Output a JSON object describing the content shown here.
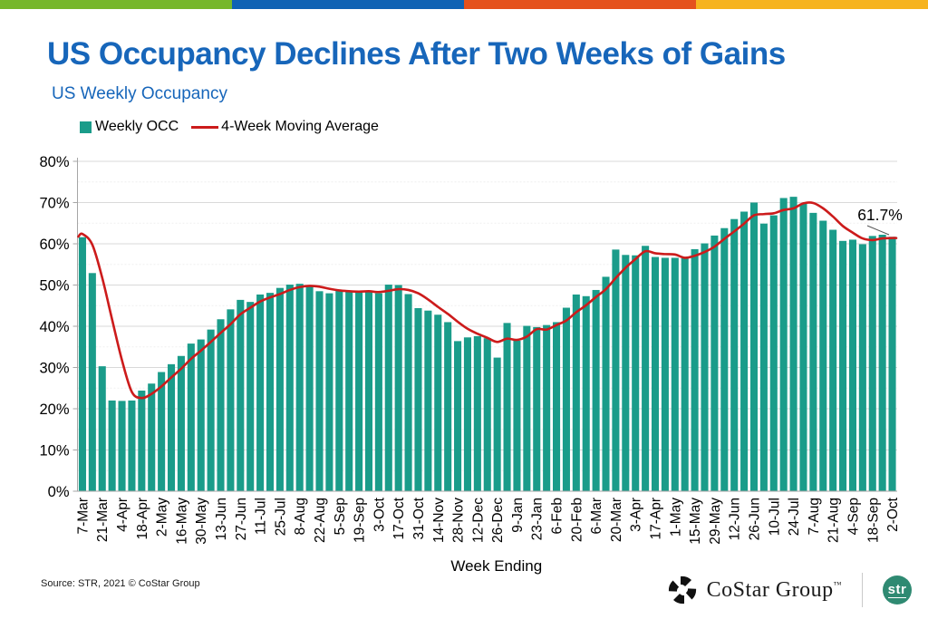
{
  "top_bar": {
    "colors": [
      "#76b72a",
      "#0f62b4",
      "#e5511d",
      "#f6b31e"
    ]
  },
  "header": {
    "title": "US Occupancy Declines After Two Weeks of Gains",
    "subtitle": "US Weekly Occupancy",
    "title_color": "#1766ba"
  },
  "footer": {
    "source": "Source: STR, 2021 © CoStar Group",
    "costar_logo_text": "CoStar Group",
    "costar_tm": "™",
    "str_badge_label": "str",
    "str_badge_color": "#2f8a72"
  },
  "chart_data": {
    "type": "bar",
    "x_axis_label": "Week Ending",
    "ylim": [
      0,
      80
    ],
    "y_ticks": [
      "0%",
      "10%",
      "20%",
      "30%",
      "40%",
      "50%",
      "60%",
      "70%",
      "80%"
    ],
    "grid": "horizontal, major solid every 10%, faint minor every 5%",
    "legend_position": "top-left",
    "annotation": {
      "text": "61.7%",
      "applies_to": "2-Oct"
    },
    "x_tick_every": 2,
    "x_tick_labels": [
      "7-Mar",
      "21-Mar",
      "4-Apr",
      "18-Apr",
      "2-May",
      "16-May",
      "30-May",
      "13-Jun",
      "27-Jun",
      "11-Jul",
      "25-Jul",
      "8-Aug",
      "22-Aug",
      "5-Sep",
      "19-Sep",
      "3-Oct",
      "17-Oct",
      "31-Oct",
      "14-Nov",
      "28-Nov",
      "12-Dec",
      "26-Dec",
      "9-Jan",
      "23-Jan",
      "6-Feb",
      "20-Feb",
      "6-Mar",
      "20-Mar",
      "3-Apr",
      "17-Apr",
      "1-May",
      "15-May",
      "29-May",
      "12-Jun",
      "26-Jun",
      "10-Jul",
      "24-Jul",
      "7-Aug",
      "21-Aug",
      "4-Sep",
      "18-Sep",
      "2-Oct"
    ],
    "series": [
      {
        "name": "Weekly OCC",
        "type": "bar",
        "color": "#1a9c8a",
        "values": [
          61.6,
          52.9,
          30.3,
          22.0,
          21.9,
          22.0,
          24.4,
          26.1,
          28.9,
          30.8,
          32.8,
          35.8,
          36.8,
          39.2,
          41.7,
          44.1,
          46.4,
          45.9,
          47.7,
          48.1,
          49.3,
          50.1,
          50.3,
          49.6,
          48.5,
          48.0,
          48.8,
          48.6,
          48.3,
          48.4,
          48.0,
          50.1,
          50.0,
          47.8,
          44.4,
          43.8,
          42.8,
          41.0,
          36.4,
          37.3,
          37.6,
          37.1,
          32.4,
          40.8,
          36.5,
          40.1,
          39.8,
          40.3,
          41.0,
          44.5,
          47.7,
          47.3,
          48.8,
          52.0,
          58.6,
          57.3,
          57.2,
          59.5,
          56.8,
          56.6,
          56.6,
          56.5,
          58.7,
          60.1,
          62.0,
          63.8,
          66.0,
          67.8,
          70.0,
          64.9,
          66.9,
          71.1,
          71.4,
          69.7,
          67.5,
          65.6,
          63.4,
          60.7,
          61.0,
          59.9,
          61.9,
          62.2,
          61.7
        ]
      },
      {
        "name": "4-Week Moving Average",
        "type": "line",
        "color": "#cc1b1b",
        "values": [
          62.4,
          59.8,
          51.8,
          41.7,
          31.8,
          24.1,
          22.6,
          23.6,
          25.4,
          27.6,
          29.7,
          32.1,
          34.1,
          36.2,
          38.4,
          40.5,
          42.9,
          44.5,
          46.0,
          47.0,
          47.8,
          48.8,
          49.5,
          49.8,
          49.6,
          49.1,
          48.7,
          48.5,
          48.4,
          48.5,
          48.3,
          48.6,
          49.0,
          48.8,
          48.0,
          46.5,
          44.7,
          43.0,
          41.1,
          39.4,
          38.2,
          37.2,
          36.2,
          37.0,
          36.7,
          37.5,
          39.3,
          39.2,
          40.3,
          41.4,
          43.4,
          45.1,
          47.1,
          49.0,
          51.7,
          54.2,
          56.3,
          58.2,
          57.7,
          57.5,
          57.4,
          56.6,
          57.1,
          58.0,
          59.3,
          61.2,
          63.0,
          64.9,
          66.9,
          67.2,
          67.4,
          68.2,
          68.6,
          69.8,
          69.9,
          68.6,
          66.6,
          64.3,
          62.7,
          61.3,
          60.9,
          61.3,
          61.4
        ]
      }
    ]
  }
}
